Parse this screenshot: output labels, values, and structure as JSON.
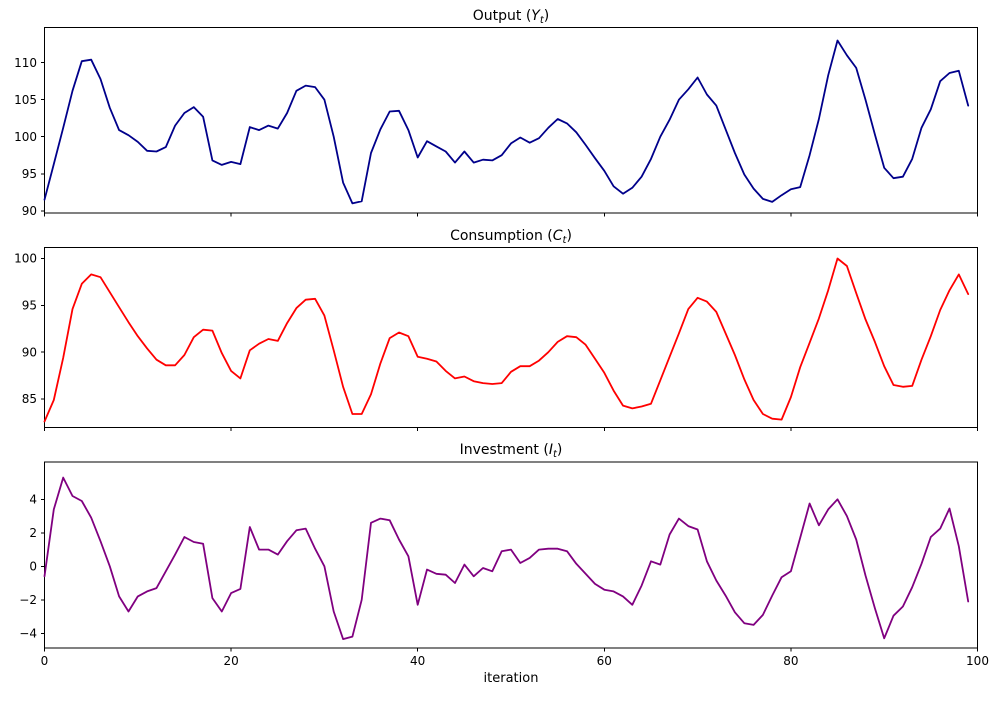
{
  "figure": {
    "background": "#ffffff",
    "xlabel": "iteration"
  },
  "chart_data": [
    {
      "type": "line",
      "name": "output",
      "title": "Output (Y_t)",
      "title_parts": {
        "prefix": "Output (",
        "variable": "Y",
        "subscript": "t",
        "suffix": ")"
      },
      "color": "#00008b",
      "line_width": 1.8,
      "xlim": [
        0,
        100
      ],
      "x_ticks": [
        0,
        20,
        40,
        60,
        80,
        100
      ],
      "ylim": [
        89.7,
        114.75
      ],
      "yticks": [
        90,
        95,
        100,
        105,
        110
      ],
      "grid": false,
      "legend": "none",
      "x_step": 1,
      "values": [
        91.5,
        96.3,
        101.2,
        106.2,
        110.2,
        110.4,
        107.8,
        103.9,
        100.9,
        100.2,
        99.3,
        98.1,
        98.0,
        98.6,
        101.5,
        103.2,
        104.0,
        102.7,
        96.8,
        96.2,
        96.6,
        96.3,
        101.3,
        100.9,
        101.5,
        101.1,
        103.2,
        106.2,
        106.9,
        106.7,
        105.0,
        100.0,
        93.8,
        91.0,
        91.3,
        97.8,
        101.0,
        103.4,
        103.5,
        100.9,
        97.2,
        99.4,
        98.7,
        98.0,
        96.5,
        98.0,
        96.5,
        96.9,
        96.8,
        97.5,
        99.1,
        99.9,
        99.2,
        99.8,
        101.2,
        102.4,
        101.8,
        100.6,
        98.9,
        97.1,
        95.4,
        93.3,
        92.3,
        93.1,
        94.6,
        97.0,
        100.0,
        102.3,
        105.0,
        106.4,
        108.0,
        105.7,
        104.2,
        101.0,
        97.8,
        94.9,
        93.0,
        91.6,
        91.2,
        92.1,
        92.9,
        93.2,
        97.5,
        102.4,
        108.3,
        113.0,
        111.0,
        109.3,
        105.0,
        100.3,
        95.8,
        94.4,
        94.6,
        97.0,
        101.2,
        103.7,
        107.5,
        108.6,
        108.9,
        104.2
      ]
    },
    {
      "type": "line",
      "name": "consumption",
      "title": "Consumption (C_t)",
      "title_parts": {
        "prefix": "Consumption (",
        "variable": "C",
        "subscript": "t",
        "suffix": ")"
      },
      "color": "#ff0000",
      "line_width": 1.8,
      "xlim": [
        0,
        100
      ],
      "x_ticks": [
        0,
        20,
        40,
        60,
        80,
        100
      ],
      "ylim": [
        81.96,
        101.17
      ],
      "yticks": [
        85,
        90,
        95,
        100
      ],
      "grid": false,
      "legend": "none",
      "x_step": 1,
      "values": [
        82.6,
        84.9,
        89.4,
        94.6,
        97.3,
        98.3,
        98.0,
        96.4,
        94.8,
        93.2,
        91.7,
        90.4,
        89.2,
        88.6,
        88.6,
        89.7,
        91.6,
        92.4,
        92.3,
        89.9,
        88.0,
        87.2,
        90.2,
        90.9,
        91.4,
        91.2,
        93.1,
        94.7,
        95.6,
        95.7,
        93.9,
        90.2,
        86.3,
        83.4,
        83.4,
        85.5,
        88.8,
        91.5,
        92.1,
        91.7,
        89.5,
        89.3,
        89.0,
        88.0,
        87.2,
        87.4,
        86.9,
        86.7,
        86.6,
        86.7,
        87.9,
        88.5,
        88.5,
        89.1,
        90.0,
        91.1,
        91.7,
        91.6,
        90.8,
        89.3,
        87.8,
        85.9,
        84.3,
        84.0,
        84.2,
        84.5,
        87.0,
        89.5,
        92.0,
        94.6,
        95.8,
        95.4,
        94.3,
        92.0,
        89.7,
        87.1,
        84.9,
        83.4,
        82.9,
        82.8,
        85.2,
        88.4,
        91.0,
        93.6,
        96.6,
        100.0,
        99.2,
        96.3,
        93.5,
        91.1,
        88.5,
        86.5,
        86.3,
        86.4,
        89.2,
        91.7,
        94.5,
        96.6,
        98.3,
        96.2
      ]
    },
    {
      "type": "line",
      "name": "investment",
      "title": "Investment (I_t)",
      "title_parts": {
        "prefix": "Investment (",
        "variable": "I",
        "subscript": "t",
        "suffix": ")"
      },
      "color": "#800080",
      "line_width": 1.8,
      "xlim": [
        0,
        100
      ],
      "x_ticks": [
        0,
        20,
        40,
        60,
        80,
        100
      ],
      "ylim": [
        -4.88,
        6.23
      ],
      "yticks": [
        -4,
        -2,
        0,
        2,
        4
      ],
      "grid": false,
      "legend": "none",
      "x_step": 1,
      "values": [
        -0.6,
        3.4,
        5.3,
        4.2,
        3.9,
        2.9,
        1.5,
        0.0,
        -1.8,
        -2.7,
        -1.8,
        -1.5,
        -1.3,
        -0.3,
        0.7,
        1.75,
        1.45,
        1.35,
        -1.9,
        -2.7,
        -1.6,
        -1.35,
        2.35,
        1.0,
        1.0,
        0.7,
        1.5,
        2.15,
        2.25,
        1.05,
        0.0,
        -2.7,
        -4.35,
        -4.2,
        -2.0,
        2.6,
        2.85,
        2.75,
        1.6,
        0.6,
        -2.3,
        -0.2,
        -0.45,
        -0.5,
        -1.0,
        0.1,
        -0.6,
        -0.1,
        -0.3,
        0.9,
        1.0,
        0.2,
        0.5,
        1.0,
        1.05,
        1.05,
        0.9,
        0.15,
        -0.45,
        -1.05,
        -1.4,
        -1.5,
        -1.8,
        -2.3,
        -1.15,
        0.3,
        0.1,
        1.9,
        2.85,
        2.4,
        2.2,
        0.3,
        -0.85,
        -1.75,
        -2.75,
        -3.4,
        -3.5,
        -2.9,
        -1.75,
        -0.65,
        -0.3,
        1.7,
        3.75,
        2.45,
        3.4,
        4.0,
        3.0,
        1.6,
        -0.55,
        -2.5,
        -4.3,
        -2.95,
        -2.4,
        -1.25,
        0.15,
        1.75,
        2.25,
        3.45,
        1.2,
        -2.1
      ]
    }
  ]
}
